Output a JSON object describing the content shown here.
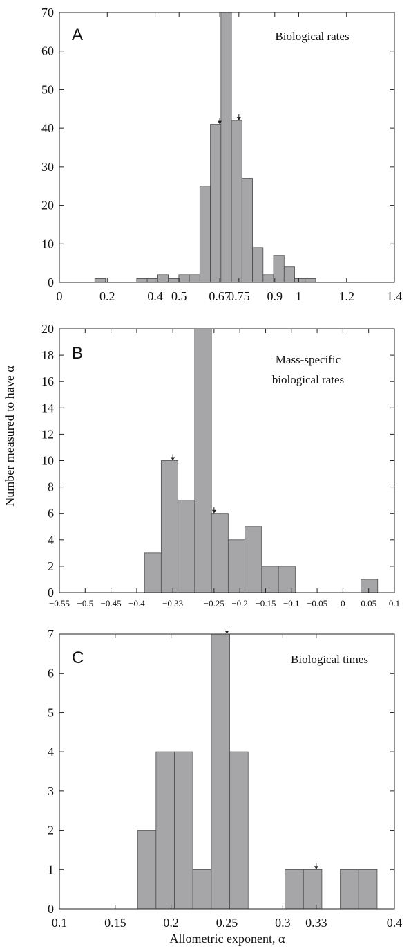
{
  "figure": {
    "ylabel": "Number measured to have α",
    "xlabel": "Allometric exponent, α"
  },
  "chart_data": [
    {
      "type": "bar",
      "panel": "A",
      "title": "Biological rates",
      "xlim": [
        0,
        1.4
      ],
      "ylim": [
        0,
        70
      ],
      "xticks": [
        0,
        0.2,
        0.4,
        0.5,
        0.67,
        0.75,
        0.9,
        1,
        1.2,
        1.4
      ],
      "xtick_labels": [
        "0",
        "0.2",
        "0.4",
        "0.5",
        "0.67",
        "0.75",
        "0.9",
        "1",
        "1.2",
        "1.4"
      ],
      "yticks": [
        0,
        10,
        20,
        30,
        40,
        50,
        60,
        70
      ],
      "bin_width": 0.044,
      "bins": [
        {
          "x": 0.148,
          "count": 1
        },
        {
          "x": 0.323,
          "count": 1
        },
        {
          "x": 0.367,
          "count": 1
        },
        {
          "x": 0.411,
          "count": 2
        },
        {
          "x": 0.455,
          "count": 1
        },
        {
          "x": 0.499,
          "count": 2
        },
        {
          "x": 0.543,
          "count": 2
        },
        {
          "x": 0.587,
          "count": 25
        },
        {
          "x": 0.631,
          "count": 41
        },
        {
          "x": 0.675,
          "count": 70
        },
        {
          "x": 0.719,
          "count": 42
        },
        {
          "x": 0.763,
          "count": 27
        },
        {
          "x": 0.807,
          "count": 9
        },
        {
          "x": 0.851,
          "count": 2
        },
        {
          "x": 0.895,
          "count": 7
        },
        {
          "x": 0.939,
          "count": 4
        },
        {
          "x": 0.983,
          "count": 1
        },
        {
          "x": 1.027,
          "count": 1
        }
      ],
      "markers": [
        0.67,
        0.75
      ]
    },
    {
      "type": "bar",
      "panel": "B",
      "title": "Mass-specific biological rates",
      "title_lines": [
        "Mass-specific",
        "biological rates"
      ],
      "xlim": [
        -0.55,
        0.1
      ],
      "ylim": [
        0,
        20
      ],
      "xticks": [
        -0.55,
        -0.5,
        -0.45,
        -0.4,
        -0.33,
        -0.25,
        -0.2,
        -0.15,
        -0.1,
        -0.05,
        0,
        0.05,
        0.1
      ],
      "xtick_labels": [
        "−0.55",
        "−0.5",
        "−0.45",
        "−0.4",
        "−0.33",
        "−0.25",
        "−0.2",
        "−0.15",
        "−0.1",
        "−0.05",
        "0",
        "0.05",
        "0.1"
      ],
      "yticks": [
        0,
        2,
        4,
        6,
        8,
        10,
        12,
        14,
        16,
        18,
        20
      ],
      "bin_width": 0.0325,
      "bins": [
        {
          "x": -0.385,
          "count": 3
        },
        {
          "x": -0.3525,
          "count": 10
        },
        {
          "x": -0.32,
          "count": 7
        },
        {
          "x": -0.2875,
          "count": 20
        },
        {
          "x": -0.255,
          "count": 6
        },
        {
          "x": -0.2225,
          "count": 4
        },
        {
          "x": -0.19,
          "count": 5
        },
        {
          "x": -0.1575,
          "count": 2
        },
        {
          "x": -0.125,
          "count": 2
        },
        {
          "x": 0.035,
          "count": 1
        }
      ],
      "markers": [
        -0.33,
        -0.25
      ]
    },
    {
      "type": "bar",
      "panel": "C",
      "title": "Biological times",
      "xlim": [
        0.1,
        0.4
      ],
      "ylim": [
        0,
        7
      ],
      "xticks": [
        0.1,
        0.15,
        0.2,
        0.25,
        0.3,
        0.33,
        0.4
      ],
      "xtick_labels": [
        "0.1",
        "0.15",
        "0.2",
        "0.25",
        "0.3",
        "0.33",
        "0.4"
      ],
      "yticks": [
        0,
        1,
        2,
        3,
        4,
        5,
        6,
        7
      ],
      "bin_width": 0.0165,
      "bins": [
        {
          "x": 0.17,
          "count": 2
        },
        {
          "x": 0.1865,
          "count": 4
        },
        {
          "x": 0.203,
          "count": 4
        },
        {
          "x": 0.2195,
          "count": 1
        },
        {
          "x": 0.236,
          "count": 7
        },
        {
          "x": 0.2525,
          "count": 4
        },
        {
          "x": 0.302,
          "count": 1
        },
        {
          "x": 0.3185,
          "count": 1
        },
        {
          "x": 0.3515,
          "count": 1
        },
        {
          "x": 0.368,
          "count": 1
        }
      ],
      "markers": [
        0.25,
        0.33
      ]
    }
  ]
}
